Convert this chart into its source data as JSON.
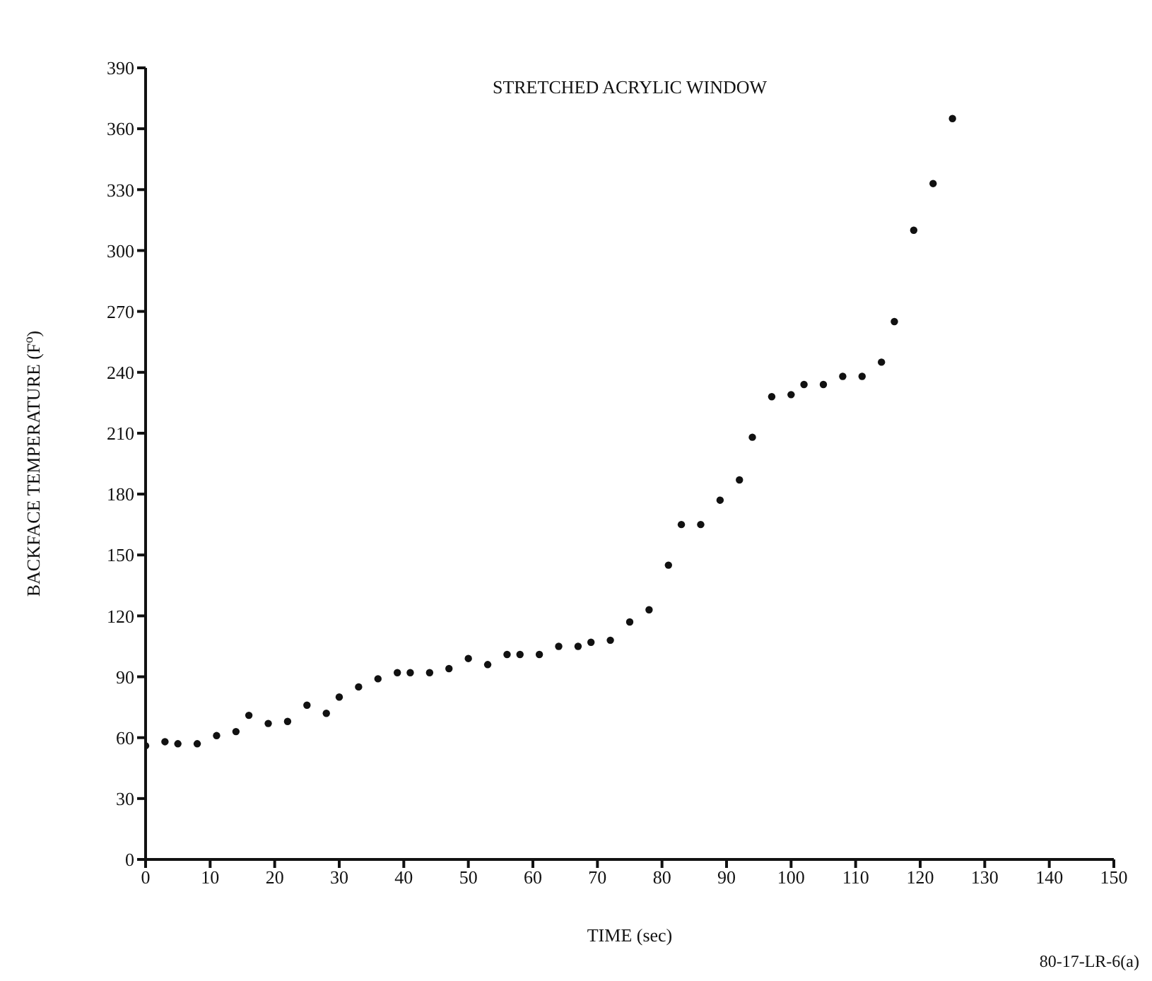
{
  "chart_data": {
    "type": "scatter",
    "title": "STRETCHED ACRYLIC WINDOW",
    "xlabel": "TIME (sec)",
    "ylabel": "BACKFACE  TEMPERATURE (F$^{o}$)",
    "annotations": [
      "80-17-LR-6(a)"
    ],
    "x": [
      0,
      3,
      5,
      8,
      11,
      14,
      16,
      19,
      22,
      25,
      28,
      30,
      33,
      36,
      39,
      41,
      44,
      47,
      50,
      53,
      56,
      58,
      61,
      64,
      67,
      69,
      72,
      75,
      78,
      81,
      83,
      86,
      89,
      92,
      94,
      97,
      100,
      102,
      105,
      108,
      111,
      114,
      116,
      119,
      122,
      125
    ],
    "series": [
      {
        "color": "#111111",
        "values": [
          56,
          58,
          57,
          57,
          61,
          63,
          71,
          67,
          68,
          76,
          72,
          80,
          85,
          89,
          92,
          92,
          92,
          94,
          99,
          96,
          101,
          101,
          101,
          105,
          105,
          107,
          108,
          117,
          123,
          145,
          165,
          165,
          177,
          187,
          208,
          228,
          229,
          234,
          234,
          238,
          238,
          245,
          265,
          310,
          333,
          365
        ]
      }
    ],
    "xlim": [
      0,
      150
    ],
    "xticks": [
      0,
      10,
      20,
      30,
      40,
      50,
      60,
      70,
      80,
      90,
      100,
      110,
      120,
      130,
      140,
      150
    ],
    "ylim": [
      0,
      390
    ],
    "yticks": [
      0,
      30,
      60,
      90,
      120,
      150,
      180,
      210,
      240,
      270,
      300,
      330,
      360,
      390
    ],
    "grid": false,
    "legend": false,
    "marker": "circle"
  }
}
